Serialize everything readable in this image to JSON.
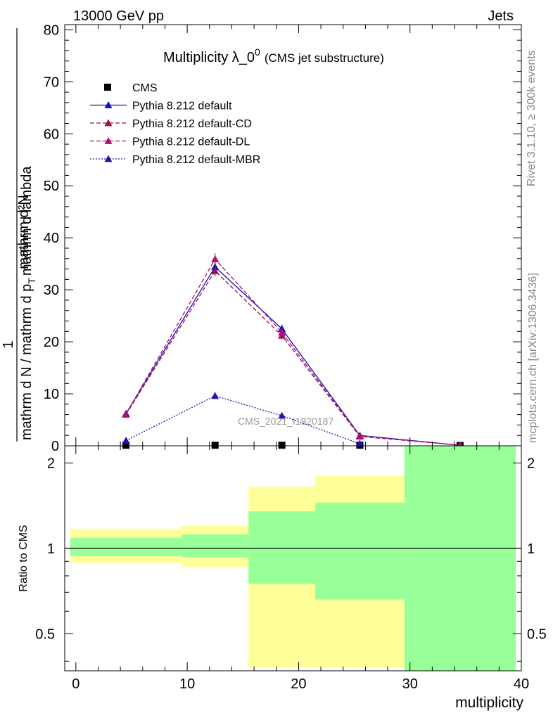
{
  "header": {
    "left": "13000 GeV pp",
    "right": "Jets"
  },
  "side": {
    "rivet": "Rivet 3.1.10, ≥ 300k events",
    "mcplots": "mcplots.cern.ch [arXiv:1306.3436]"
  },
  "watermark": "CMS_2021_I1920187",
  "colors": {
    "cms": "#000000",
    "default": "#1010c8",
    "cd": "#a0104c",
    "dl": "#b01070",
    "mbr": "#3010a8",
    "band_yellow": "#ffff99",
    "band_green": "#99ff99"
  },
  "chart_data": [
    {
      "type": "line",
      "title_main": "Multiplicity λ_0",
      "title_sup": "0",
      "title_sub": "(CMS jet substructure)",
      "ylabel_numerator": "1",
      "ylabel_denominator": "mathrm d N / mathrm d p",
      "ylabel_denominator_sub": "T",
      "ylabel_denominator_tail": "mathrm d lambda",
      "ylabel_top_numerator": "mathrm d²N",
      "ylabel_top_denominator": "mathrm d p",
      "ylabel_top_denominator_sub": "T",
      "ylabel_top_denominator_tail": "mathrm d lambda",
      "xlim": [
        -1,
        40
      ],
      "ylim": [
        0,
        81
      ],
      "y_ticks": [
        0,
        10,
        20,
        30,
        40,
        50,
        60,
        70,
        80
      ],
      "y_tick_labels": [
        "0",
        "10",
        "20",
        "30",
        "40",
        "50",
        "60",
        "70",
        "80"
      ],
      "legend_position": "top-left",
      "series": [
        {
          "name": "CMS",
          "key": "cms",
          "style": "marker",
          "x": [
            4.5,
            12.5,
            18.5,
            25.5,
            34.5
          ],
          "y": [
            0.1,
            0.1,
            0.1,
            0.1,
            0.05
          ],
          "yerr": [
            0,
            0,
            0,
            0,
            0
          ]
        },
        {
          "name": "Pythia 8.212 default",
          "key": "default",
          "style": "solid",
          "x": [
            4.5,
            12.5,
            18.5,
            25.5,
            34.5
          ],
          "y": [
            6.2,
            34.4,
            22.5,
            2.0,
            0.1
          ],
          "yerr": [
            0.3,
            1.0,
            0.8,
            0.2,
            0.05
          ]
        },
        {
          "name": "Pythia 8.212 default-CD",
          "key": "cd",
          "style": "dashed",
          "x": [
            4.5,
            12.5,
            18.5,
            25.5,
            34.5
          ],
          "y": [
            6.0,
            33.6,
            21.2,
            1.8,
            0.1
          ],
          "yerr": [
            0.3,
            1.0,
            0.8,
            0.2,
            0.05
          ]
        },
        {
          "name": "Pythia 8.212 default-DL",
          "key": "dl",
          "style": "dashed",
          "x": [
            4.5,
            12.5,
            18.5,
            25.5,
            34.5
          ],
          "y": [
            6.1,
            35.9,
            21.8,
            1.9,
            0.1
          ],
          "yerr": [
            0.3,
            1.1,
            0.8,
            0.2,
            0.05
          ]
        },
        {
          "name": "Pythia 8.212 default-MBR",
          "key": "mbr",
          "style": "dotted",
          "x": [
            4.5,
            12.5,
            18.5,
            25.5
          ],
          "y": [
            1.0,
            9.6,
            5.8,
            0.4
          ],
          "yerr": [
            0.2,
            0.6,
            0.4,
            0.1
          ]
        }
      ]
    },
    {
      "type": "area",
      "ylabel": "Ratio to CMS",
      "xlabel": "multiplicity",
      "xlim": [
        -1,
        40
      ],
      "ylim": [
        0.37,
        2.3
      ],
      "y_scale": "log",
      "y_ticks": [
        0.5,
        1,
        2
      ],
      "y_tick_labels": [
        "0.5",
        "1",
        "2"
      ],
      "x_ticks": [
        0,
        10,
        20,
        30,
        40
      ],
      "x_tick_labels": [
        "0",
        "10",
        "20",
        "30",
        "40"
      ],
      "reference": 1,
      "bins": [
        {
          "lo": -0.5,
          "hi": 9.5,
          "yellow": [
            0.89,
            1.17
          ],
          "green": [
            0.94,
            1.09
          ]
        },
        {
          "lo": 9.5,
          "hi": 15.5,
          "yellow": [
            0.86,
            1.2
          ],
          "green": [
            0.93,
            1.12
          ]
        },
        {
          "lo": 15.5,
          "hi": 21.5,
          "yellow": [
            0.38,
            1.65
          ],
          "green": [
            0.75,
            1.35
          ]
        },
        {
          "lo": 21.5,
          "hi": 29.5,
          "yellow": [
            0.38,
            1.8
          ],
          "green": [
            0.66,
            1.45
          ]
        },
        {
          "lo": 29.5,
          "hi": 39.5,
          "yellow": [
            0.37,
            2.3
          ],
          "green": [
            0.37,
            2.3
          ]
        }
      ]
    }
  ]
}
